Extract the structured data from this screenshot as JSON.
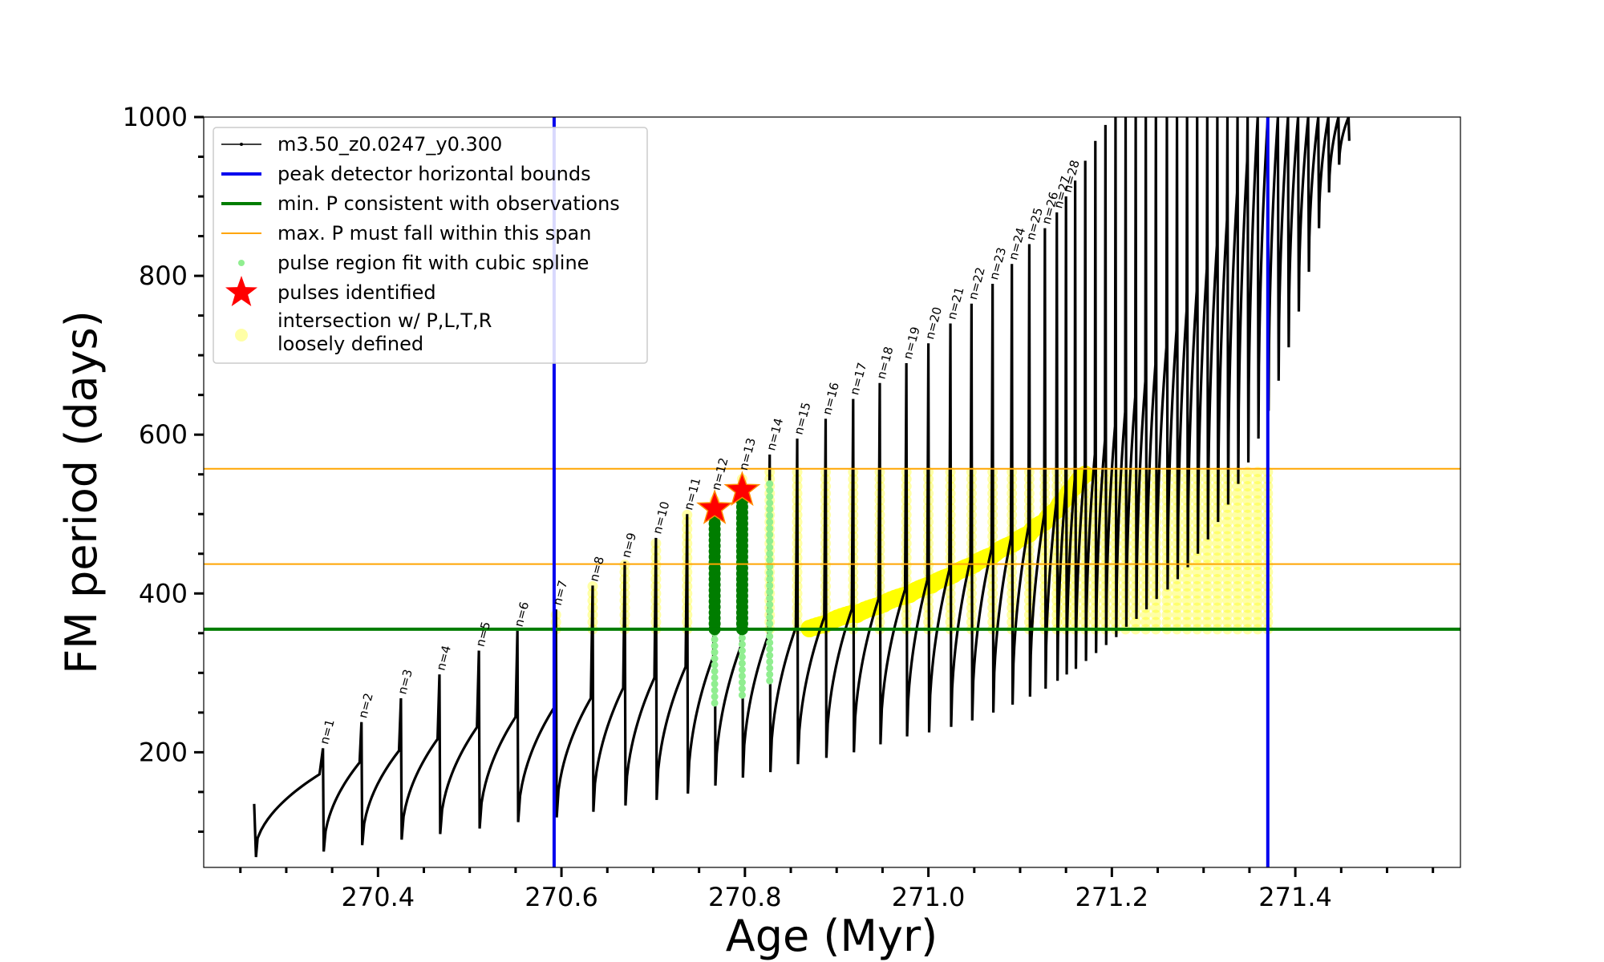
{
  "chart_data": {
    "type": "scatter",
    "xlabel": "Age (Myr)",
    "ylabel": "FM period (days)",
    "xlim": [
      270.21,
      271.58
    ],
    "ylim": [
      55,
      1000
    ],
    "x_ticks": [
      270.4,
      270.6,
      270.8,
      271.0,
      271.2,
      271.4
    ],
    "x_tick_labels": [
      "270.4",
      "270.6",
      "270.8",
      "271.0",
      "271.2",
      "271.4"
    ],
    "x_minor_step": 0.05,
    "y_ticks": [
      200,
      400,
      600,
      800,
      1000
    ],
    "y_tick_labels": [
      "200",
      "400",
      "600",
      "800",
      "1000"
    ],
    "y_minor_step": 50,
    "grid": false,
    "legend_position": "top-left",
    "series": [
      {
        "name": "m3.50_z0.0247_y0.300",
        "kind": "period-sawtooth-track",
        "color": "#000000",
        "pulse_ages": [
          270.34,
          270.382,
          270.425,
          270.467,
          270.51,
          270.552,
          270.594,
          270.634,
          270.669,
          270.703,
          270.737,
          270.767,
          270.797,
          270.827,
          270.857,
          270.888,
          270.918,
          270.947,
          270.976,
          271.0,
          271.024,
          271.047,
          271.07,
          271.091,
          271.11,
          271.127,
          271.14,
          271.15,
          271.16,
          271.171,
          271.182,
          271.193,
          271.204,
          271.215,
          271.226,
          271.237,
          271.248,
          271.26,
          271.271,
          271.282,
          271.293,
          271.304,
          271.315,
          271.326,
          271.337,
          271.348,
          271.359,
          271.37,
          271.381,
          271.392,
          271.403,
          271.414,
          271.425,
          271.436,
          271.447,
          271.458
        ],
        "pulse_peak_period": [
          205,
          238,
          268,
          298,
          328,
          353,
          380,
          410,
          440,
          470,
          500,
          525,
          550,
          575,
          595,
          620,
          645,
          665,
          690,
          715,
          740,
          765,
          790,
          815,
          840,
          860,
          880,
          900,
          920,
          945,
          970,
          990,
          1000,
          1000,
          1000,
          1000,
          1000,
          1000,
          1000,
          1000,
          1000,
          1000,
          1000,
          1000,
          1000,
          1000,
          1000,
          1000,
          1000,
          1000,
          1000,
          1000,
          1000,
          1000,
          1000,
          1000
        ],
        "pulse_trough_period": [
          75,
          83,
          90,
          97,
          104,
          112,
          118,
          125,
          133,
          140,
          148,
          158,
          168,
          175,
          185,
          193,
          200,
          210,
          220,
          225,
          232,
          240,
          250,
          260,
          270,
          280,
          290,
          298,
          305,
          315,
          325,
          335,
          345,
          358,
          368,
          380,
          393,
          405,
          418,
          433,
          450,
          468,
          490,
          512,
          538,
          565,
          595,
          630,
          668,
          710,
          755,
          805,
          860,
          905,
          940,
          970
        ],
        "pulse_envelope_period": [
          175,
          190,
          205,
          220,
          235,
          248,
          260,
          272,
          285,
          298,
          312,
          325,
          338,
          352,
          362,
          375,
          385,
          398,
          410,
          422,
          435,
          448,
          462,
          475,
          490,
          505,
          520,
          535,
          550,
          565,
          582,
          600,
          618,
          636,
          655,
          675,
          696,
          718,
          740,
          765,
          790,
          818,
          848,
          880,
          915,
          955,
          1000,
          1000,
          1000,
          1000,
          1000,
          1000,
          1000,
          1000,
          1000,
          1000
        ]
      },
      {
        "name": "peak detector horizontal bounds",
        "kind": "vline",
        "color": "#0000ee",
        "x": [
          270.592,
          271.37
        ]
      },
      {
        "name": "min. P consistent with observations",
        "kind": "hline",
        "color": "#007d00",
        "y": 355
      },
      {
        "name": "max. P must fall within this span",
        "kind": "hline",
        "color": "#ffa500",
        "y": [
          437,
          557
        ]
      },
      {
        "name": "pulse region fit with cubic spline",
        "kind": "spline-region",
        "color": "#90ee90",
        "x": [
          270.767,
          270.797,
          270.827
        ],
        "y_min": [
          262,
          272,
          290
        ],
        "y_max": [
          500,
          525,
          545
        ]
      },
      {
        "name": "pulses identified",
        "kind": "star",
        "color": "#ff0000",
        "x": [
          270.767,
          270.797
        ],
        "y": [
          507,
          530
        ]
      },
      {
        "name": "intersection w/ P,L,T,R\nloosely defined",
        "kind": "band",
        "color": "#ffff00",
        "y_range": [
          355,
          557
        ]
      }
    ],
    "pulse_labels": [
      "n=1",
      "n=2",
      "n=3",
      "n=4",
      "n=5",
      "n=6",
      "n=7",
      "n=8",
      "n=9",
      "n=10",
      "n=11",
      "n=12",
      "n=13",
      "n=14",
      "n=15",
      "n=16",
      "n=17",
      "n=18",
      "n=19",
      "n=20",
      "n=21",
      "n=22",
      "n=23",
      "n=24",
      "n=25",
      "n=26",
      "n=27",
      "n=28"
    ]
  }
}
